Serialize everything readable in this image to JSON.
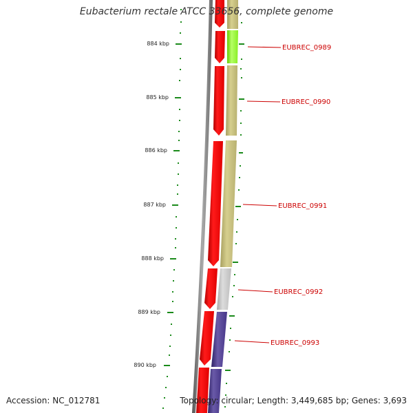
{
  "title": "Eubacterium rectale ATCC 33656, complete genome",
  "footer": {
    "accession": "Accession: NC_012781",
    "summary": "Topology: circular; Length: 3,449,685 bp; Genes: 3,693"
  },
  "axis": {
    "ticks": [
      "884 kbp",
      "885 kbp",
      "886 kbp",
      "887 kbp",
      "888 kbp",
      "889 kbp",
      "890 kbp"
    ]
  },
  "genes": [
    {
      "label": "EUBREC_0989"
    },
    {
      "label": "EUBREC_0990"
    },
    {
      "label": "EUBREC_0991"
    },
    {
      "label": "EUBREC_0992"
    },
    {
      "label": "EUBREC_0993"
    }
  ],
  "colors": {
    "gene_red": "#ff0000",
    "cog_olive": "#c8c078",
    "cog_green": "#99ff33",
    "cog_gray": "#c0c0c0",
    "cog_purple": "#4b3a8c",
    "backbone": "#777777",
    "tick_green": "#1a8a1a",
    "label_red": "#cc0000"
  }
}
